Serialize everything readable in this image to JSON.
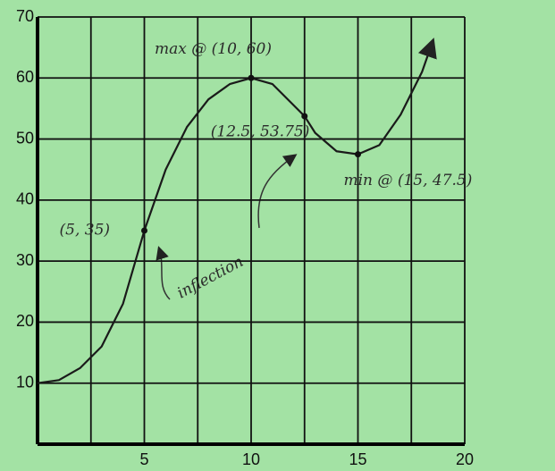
{
  "chart_data": {
    "type": "line",
    "x": [
      0,
      1,
      2,
      3,
      4,
      5,
      6,
      7,
      8,
      9,
      10,
      11,
      12,
      12.5,
      13,
      14,
      15,
      16,
      17,
      18,
      18.5
    ],
    "series": [
      {
        "color": "#1a1a1a",
        "values": [
          10,
          10.5,
          12.5,
          16,
          23,
          35,
          45,
          52,
          56.5,
          59,
          60,
          59,
          55.5,
          53.75,
          51,
          48,
          47.5,
          49,
          54,
          61,
          66
        ]
      }
    ],
    "xlim": [
      0,
      20
    ],
    "xticks": [
      5,
      10,
      15,
      20
    ],
    "x_minor_gridlines": [
      2.5,
      7.5,
      12.5,
      17.5
    ],
    "ylim": [
      0,
      70
    ],
    "yticks": [
      10,
      20,
      30,
      40,
      50,
      60,
      70
    ],
    "grid": true,
    "annotations": [
      {
        "text": "(5, 35)",
        "x": 5,
        "y": 35
      },
      {
        "text": "max @ (10, 60)",
        "x": 10,
        "y": 60
      },
      {
        "text": "(12.5, 53.75)",
        "x": 12.5,
        "y": 53.75
      },
      {
        "text": "min @ (15, 47.5)",
        "x": 15,
        "y": 47.5
      }
    ],
    "inflection_label": "inflection"
  }
}
